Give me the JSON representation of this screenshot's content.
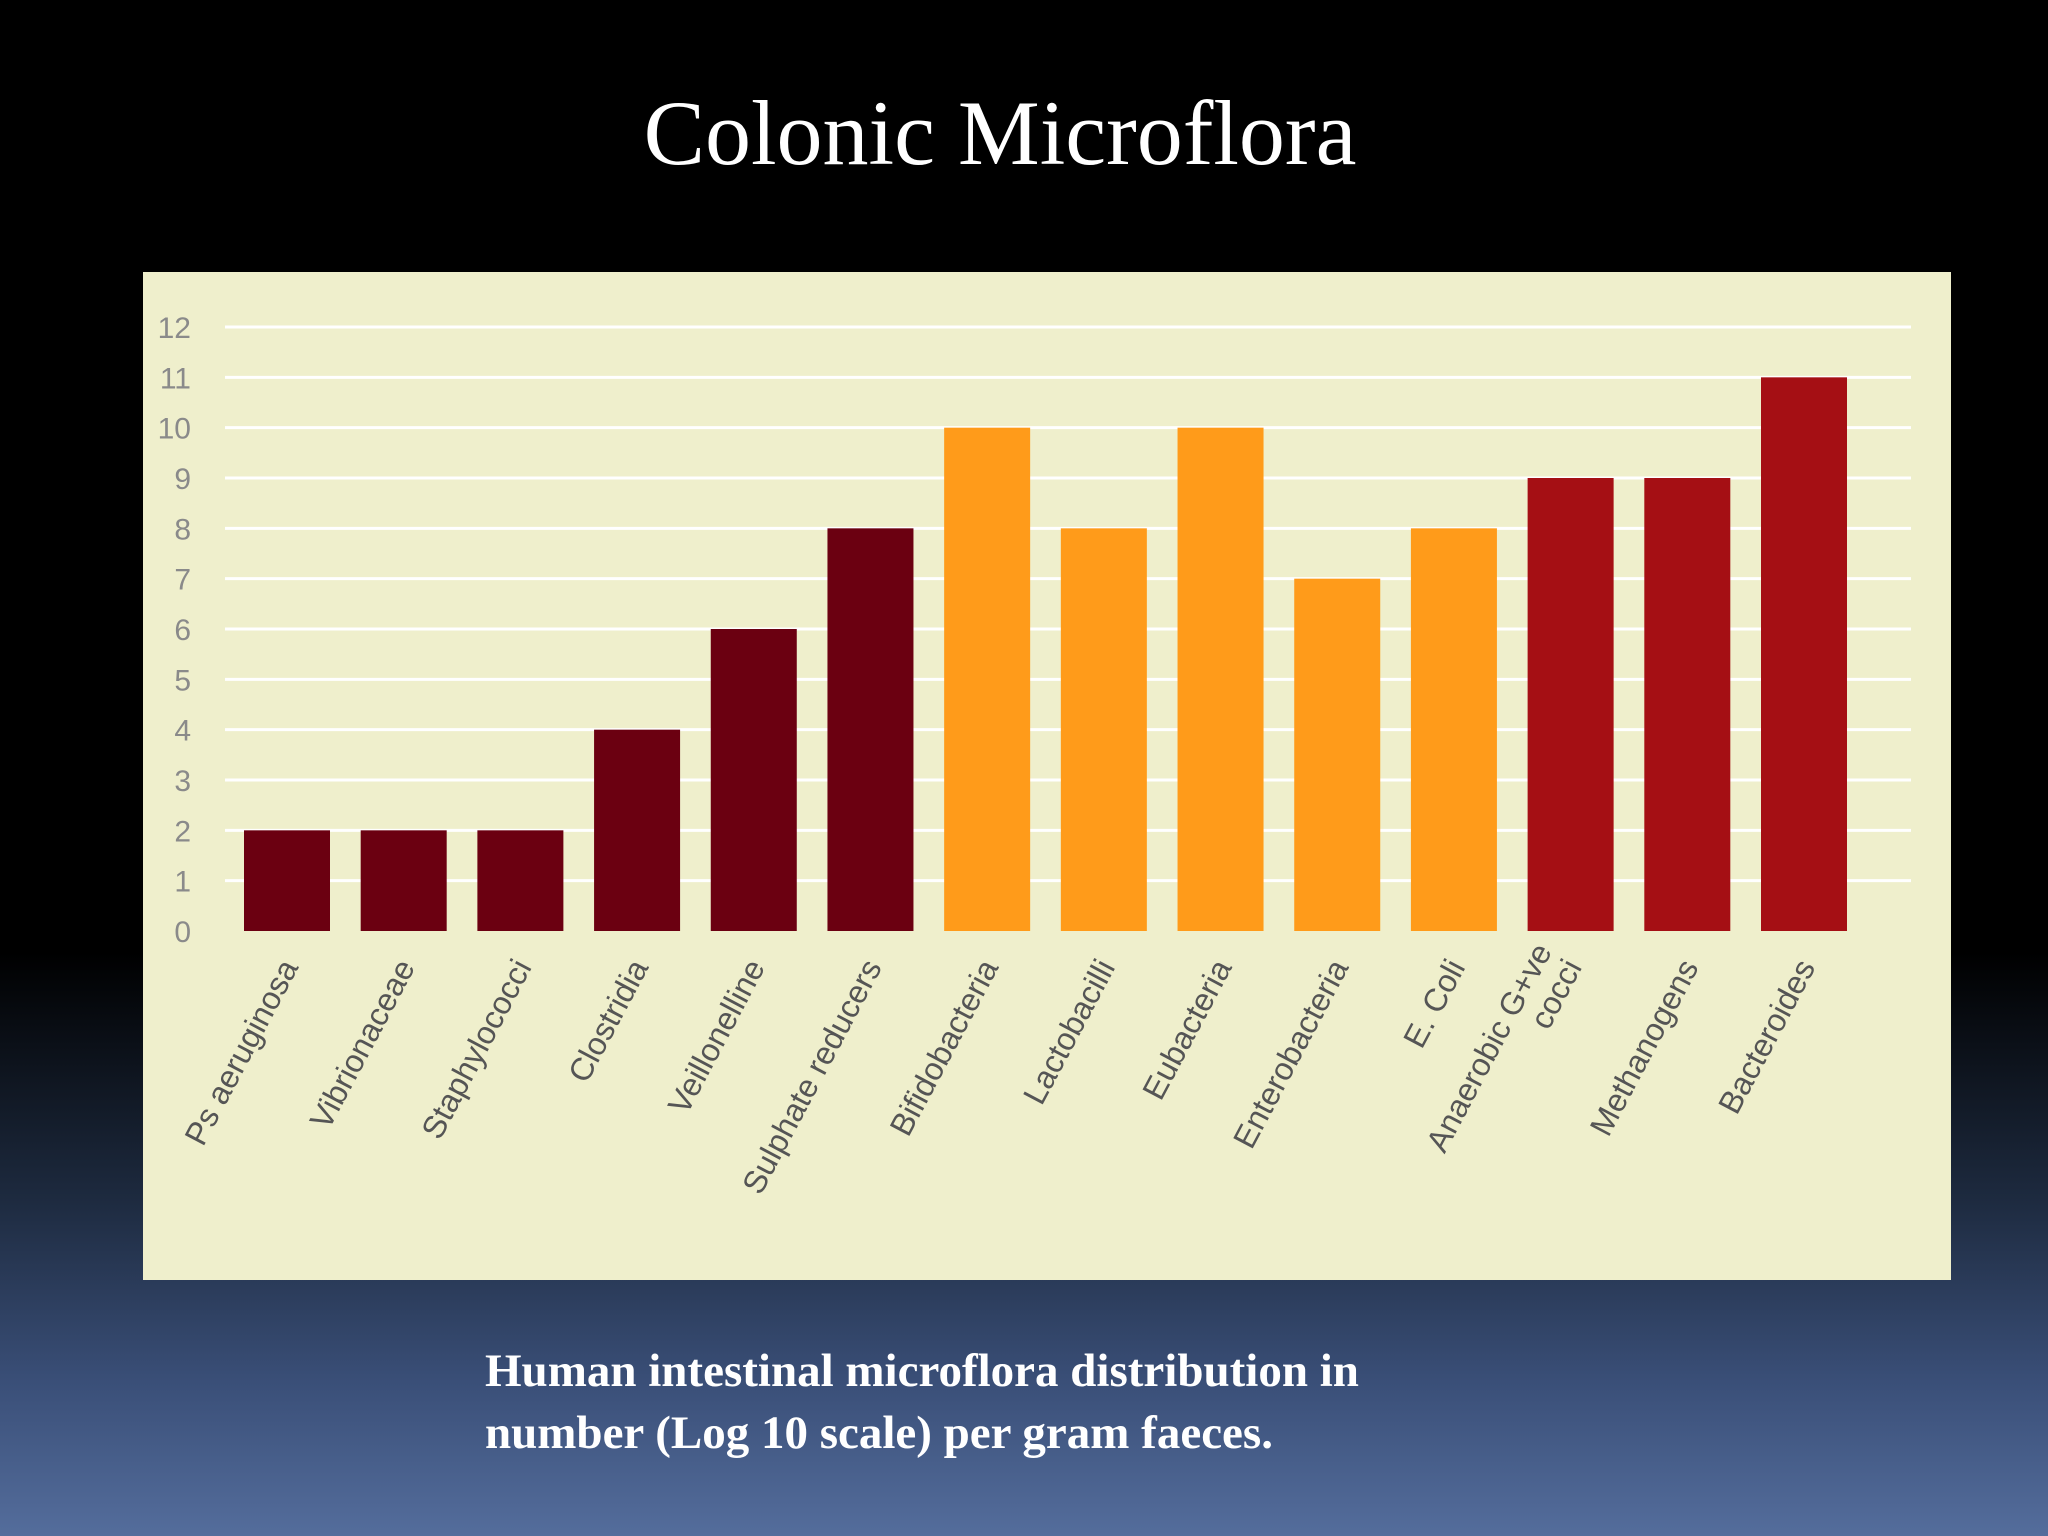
{
  "slide": {
    "title": "Colonic Microflora",
    "caption_line1": "Human intestinal microflora distribution in",
    "caption_line2": "number (Log 10 scale) per gram faeces."
  },
  "chart_data": {
    "type": "bar",
    "title": "",
    "xlabel": "",
    "ylabel": "",
    "ylim": [
      0,
      12
    ],
    "yticks": [
      0,
      1,
      2,
      3,
      4,
      5,
      6,
      7,
      8,
      9,
      10,
      11,
      12
    ],
    "grid": true,
    "categories": [
      "Ps aeruginosa",
      "Vibrionaceae",
      "Staphylococci",
      "Clostridia",
      "Veillonelline",
      "Sulphate reducers",
      "Bifidobacteria",
      "Lactobacilli",
      "Eubacteria",
      "Enterobacteria",
      "E. Coli",
      "Anaerobic G+ve cocci",
      "Methanogens",
      "Bacteroides"
    ],
    "label_lines": [
      [
        "Ps aeruginosa"
      ],
      [
        "Vibrionaceae"
      ],
      [
        "Staphylococci"
      ],
      [
        "Clostridia"
      ],
      [
        "Veillonelline"
      ],
      [
        "Sulphate reducers"
      ],
      [
        "Bifidobacteria"
      ],
      [
        "Lactobacilli"
      ],
      [
        "Eubacteria"
      ],
      [
        "Enterobacteria"
      ],
      [
        "E. Coli"
      ],
      [
        "Anaerobic G+ve",
        "cocci"
      ],
      [
        "Methanogens"
      ],
      [
        "Bacteroides"
      ]
    ],
    "values": [
      2,
      2,
      2,
      4,
      6,
      8,
      10,
      8,
      10,
      7,
      8,
      9,
      9,
      11
    ],
    "colors": [
      "#6b0011",
      "#6b0011",
      "#6b0011",
      "#6b0011",
      "#6b0011",
      "#6b0011",
      "#ff9b1a",
      "#ff9b1a",
      "#ff9b1a",
      "#ff9b1a",
      "#ff9b1a",
      "#a50f14",
      "#a50f14",
      "#a50f14"
    ],
    "background_color": "#efefcc",
    "gridline_color": "#ffffff",
    "tick_label_color": "#8a8a8a"
  }
}
